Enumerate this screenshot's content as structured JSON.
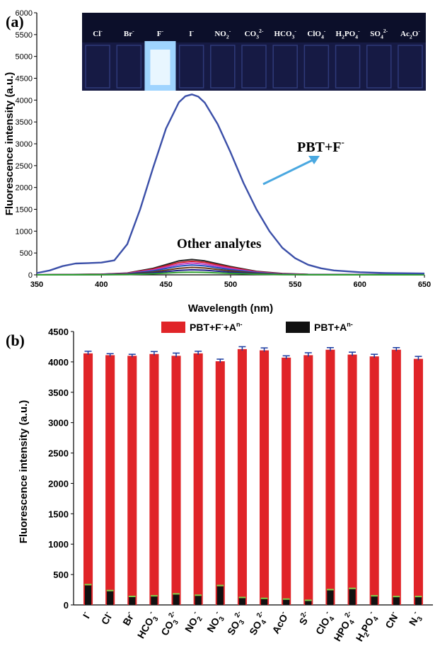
{
  "figure": {
    "panel_a_label": "(a)",
    "panel_b_label": "(b)"
  },
  "chart_data": [
    {
      "type": "line",
      "panel": "a",
      "xlabel": "Wavelength (nm)",
      "ylabel": "Fluorescence intensity (a.u.)",
      "xlim": [
        350,
        650
      ],
      "ylim": [
        0,
        6000
      ],
      "x_ticks": [
        350,
        400,
        450,
        500,
        550,
        600,
        650
      ],
      "y_ticks": [
        0,
        500,
        1000,
        1500,
        2000,
        2500,
        3000,
        3500,
        4000,
        4500,
        5000,
        5500,
        6000
      ],
      "annotations": {
        "main": "PBT+F",
        "main_sup": "-",
        "others": "Other analytes"
      },
      "inset_photo": {
        "vials": [
          {
            "base": "Cl",
            "sub": "",
            "sup": "-",
            "glow": false
          },
          {
            "base": "Br",
            "sub": "",
            "sup": "-",
            "glow": false
          },
          {
            "base": "F",
            "sub": "",
            "sup": "-",
            "glow": true
          },
          {
            "base": "I",
            "sub": "",
            "sup": "-",
            "glow": false
          },
          {
            "base": "NO",
            "sub": "2",
            "sup": "-",
            "glow": false
          },
          {
            "base": "CO",
            "sub": "3",
            "sup": "2-",
            "glow": false
          },
          {
            "base": "HCO",
            "sub": "3",
            "sup": "-",
            "glow": false
          },
          {
            "base": "ClO",
            "sub": "4",
            "sup": "-",
            "glow": false
          },
          {
            "base": "H",
            "sub": "2",
            "mid": "PO",
            "sub2": "4",
            "sup": "-",
            "glow": false
          },
          {
            "base": "SO",
            "sub": "4",
            "sup": "2-",
            "glow": false
          },
          {
            "base": "Ac",
            "sub": "2",
            "mid": "O",
            "sup": "-",
            "glow": false
          }
        ]
      },
      "series": [
        {
          "name": "PBT+F-",
          "color": "#3b4fa8",
          "x": [
            350,
            360,
            370,
            380,
            390,
            400,
            410,
            420,
            430,
            440,
            450,
            460,
            465,
            470,
            475,
            480,
            490,
            500,
            510,
            520,
            530,
            540,
            550,
            560,
            570,
            580,
            600,
            620,
            650
          ],
          "y": [
            40,
            100,
            200,
            260,
            270,
            280,
            330,
            700,
            1500,
            2450,
            3350,
            3950,
            4090,
            4130,
            4080,
            3940,
            3450,
            2800,
            2100,
            1500,
            1000,
            620,
            380,
            230,
            150,
            100,
            60,
            40,
            30
          ]
        },
        {
          "name": "Other analytes",
          "color": "#222222",
          "x": [
            350,
            400,
            420,
            440,
            460,
            470,
            480,
            500,
            520,
            540,
            560,
            600,
            650
          ],
          "y": [
            0,
            15,
            40,
            150,
            320,
            350,
            320,
            190,
            80,
            30,
            10,
            3,
            0
          ]
        },
        {
          "name": "Other analytes",
          "color": "#d02030",
          "x": [
            350,
            400,
            420,
            440,
            460,
            470,
            480,
            500,
            520,
            540,
            560,
            600,
            650
          ],
          "y": [
            0,
            12,
            35,
            130,
            280,
            310,
            285,
            170,
            70,
            25,
            8,
            2,
            0
          ]
        },
        {
          "name": "Other analytes",
          "color": "#c040c0",
          "x": [
            350,
            400,
            420,
            440,
            460,
            470,
            480,
            500,
            520,
            540,
            560,
            600,
            650
          ],
          "y": [
            0,
            10,
            30,
            110,
            240,
            270,
            245,
            145,
            60,
            20,
            6,
            2,
            0
          ]
        },
        {
          "name": "Other analytes",
          "color": "#2050c0",
          "x": [
            350,
            400,
            420,
            440,
            460,
            470,
            480,
            500,
            520,
            540,
            560,
            600,
            650
          ],
          "y": [
            0,
            8,
            25,
            90,
            200,
            225,
            205,
            120,
            50,
            15,
            5,
            1,
            0
          ]
        },
        {
          "name": "Other analytes",
          "color": "#6a3a1a",
          "x": [
            350,
            400,
            420,
            440,
            460,
            470,
            480,
            500,
            520,
            540,
            560,
            600,
            650
          ],
          "y": [
            0,
            6,
            18,
            65,
            150,
            170,
            155,
            90,
            38,
            12,
            4,
            1,
            0
          ]
        },
        {
          "name": "Other analytes",
          "color": "#20208a",
          "x": [
            350,
            400,
            420,
            440,
            460,
            470,
            480,
            500,
            520,
            540,
            560,
            600,
            650
          ],
          "y": [
            0,
            4,
            12,
            45,
            100,
            115,
            105,
            60,
            25,
            8,
            3,
            1,
            0
          ]
        },
        {
          "name": "Other analytes",
          "color": "#30a030",
          "x": [
            350,
            400,
            420,
            440,
            460,
            470,
            480,
            500,
            520,
            540,
            560,
            600,
            650
          ],
          "y": [
            0,
            2,
            6,
            25,
            55,
            60,
            55,
            32,
            14,
            5,
            2,
            0,
            0
          ]
        }
      ]
    },
    {
      "type": "bar",
      "panel": "b",
      "xlabel": "",
      "ylabel": "Fluorescence intensity (a.u.)",
      "ylim": [
        0,
        4500
      ],
      "y_ticks": [
        0,
        500,
        1000,
        1500,
        2000,
        2500,
        3000,
        3500,
        4000,
        4500
      ],
      "legend_position": "top",
      "categories": [
        {
          "base": "I",
          "sub": "",
          "sup": "-"
        },
        {
          "base": "Cl",
          "sub": "",
          "sup": "-"
        },
        {
          "base": "Br",
          "sub": "",
          "sup": "-"
        },
        {
          "base": "HCO",
          "sub": "3",
          "sup": "-"
        },
        {
          "base": "CO",
          "sub": "3",
          "sup": "2-"
        },
        {
          "base": "NO",
          "sub": "2",
          "sup": "-"
        },
        {
          "base": "NO",
          "sub": "3",
          "sup": "-"
        },
        {
          "base": "SO",
          "sub": "3",
          "sup": "2-"
        },
        {
          "base": "SO",
          "sub": "4",
          "sup": "2-"
        },
        {
          "base": "AcO",
          "sub": "",
          "sup": "-"
        },
        {
          "base": "S",
          "sub": "",
          "sup": "2-"
        },
        {
          "base": "ClO",
          "sub": "4",
          "sup": "-"
        },
        {
          "base": "HPO",
          "sub": "4",
          "sup": "2-"
        },
        {
          "base": "H",
          "sub": "2",
          "mid": "PO",
          "sub2": "4",
          "sup": "-"
        },
        {
          "base": "CN",
          "sub": "",
          "sup": "-"
        },
        {
          "base": "N",
          "sub": "3",
          "sup": "-"
        }
      ],
      "series": [
        {
          "name": "PBT+F",
          "name_sup": "-",
          "name_tail": "+A",
          "name_tail_sup": "n-",
          "color": "#e02428",
          "values": [
            4140,
            4110,
            4100,
            4130,
            4100,
            4140,
            4010,
            4210,
            4190,
            4070,
            4110,
            4200,
            4120,
            4090,
            4200,
            4050
          ],
          "errors": [
            35,
            25,
            25,
            40,
            45,
            35,
            35,
            40,
            40,
            30,
            40,
            35,
            40,
            35,
            35,
            40
          ]
        },
        {
          "name": "PBT+A",
          "name_sup": "n-",
          "color": "#111111",
          "values": [
            320,
            225,
            130,
            140,
            170,
            150,
            305,
            115,
            100,
            90,
            70,
            240,
            260,
            140,
            130,
            130
          ],
          "errors": [
            15,
            12,
            10,
            10,
            12,
            10,
            15,
            8,
            8,
            6,
            6,
            12,
            12,
            10,
            8,
            8
          ]
        }
      ]
    }
  ]
}
